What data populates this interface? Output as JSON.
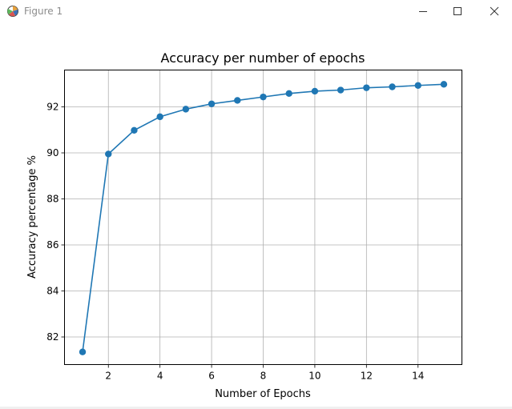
{
  "window": {
    "title": "Figure 1",
    "icons": {
      "app": "matplotlib-icon",
      "minimize": "minimize-icon",
      "maximize": "maximize-icon",
      "close": "close-icon"
    }
  },
  "chart_data": {
    "type": "line",
    "title": "Accuracy per number of epochs",
    "xlabel": "Number of Epochs",
    "ylabel": "Accuracy percentage %",
    "xlim": [
      0.3,
      15.7
    ],
    "ylim": [
      80.8,
      93.6
    ],
    "xticks": [
      2,
      4,
      6,
      8,
      10,
      12,
      14
    ],
    "yticks": [
      82,
      84,
      86,
      88,
      90,
      92
    ],
    "grid": true,
    "color": "#1f77b4",
    "series": [
      {
        "x": [
          1,
          2,
          3,
          4,
          5,
          6,
          7,
          8,
          9,
          10,
          11,
          12,
          13,
          14,
          15
        ],
        "y": [
          81.35,
          89.95,
          90.98,
          91.57,
          91.9,
          92.13,
          92.28,
          92.43,
          92.58,
          92.68,
          92.73,
          92.83,
          92.87,
          92.93,
          92.98
        ]
      }
    ]
  }
}
